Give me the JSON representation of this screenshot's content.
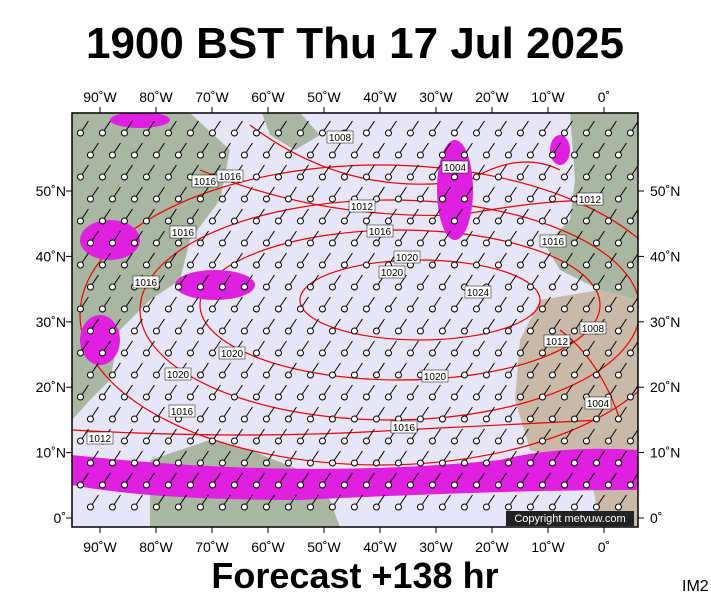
{
  "header": {
    "title": "1900 BST Thu 17 Jul 2025"
  },
  "map": {
    "lon_labels": [
      "90˚W",
      "80˚W",
      "70˚W",
      "60˚W",
      "50˚W",
      "40˚W",
      "30˚W",
      "20˚W",
      "10˚W",
      "0˚"
    ],
    "lat_labels": [
      "50˚N",
      "40˚N",
      "30˚N",
      "20˚N",
      "10˚N",
      "0˚"
    ],
    "isobar_labels": [
      "1008",
      "1004",
      "1016",
      "1016",
      "1012",
      "1016",
      "1016",
      "1020",
      "1020",
      "1016",
      "1024",
      "1012",
      "1016",
      "1008",
      "1012",
      "1020",
      "1020",
      "1020",
      "1016",
      "1016",
      "1012",
      "1004"
    ],
    "copyright": "Copyright metvuw.com"
  },
  "footer": {
    "forecast": "Forecast +138 hr",
    "code": "IM2"
  }
}
